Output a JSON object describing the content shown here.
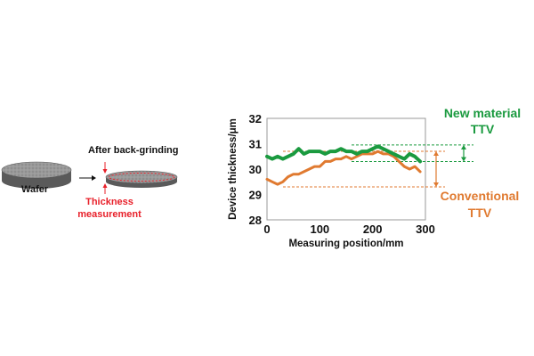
{
  "diagram": {
    "wafer_label": "Wafer",
    "after_label": "After back-grinding",
    "thickness_label_line1": "Thickness",
    "thickness_label_line2": "measurement"
  },
  "annotations": {
    "new_line1": "New material",
    "new_line2": "TTV",
    "conv_line1": "Conventional",
    "conv_line2": "TTV"
  },
  "colors": {
    "new_material": "#1a9a3f",
    "conventional": "#e07a30",
    "red": "#e8202a"
  },
  "chart_data": {
    "type": "line",
    "title": "",
    "xlabel": "Measuring position/mm",
    "ylabel": "Device thickness/μm",
    "xlim": [
      0,
      300
    ],
    "ylim": [
      28,
      32
    ],
    "xticks": [
      "0",
      "100",
      "200",
      "300"
    ],
    "yticks": [
      "28",
      "29",
      "30",
      "31",
      "32"
    ],
    "grid": false,
    "series": [
      {
        "name": "New material",
        "color": "#1a9a3f",
        "x": [
          0,
          10,
          20,
          30,
          40,
          50,
          60,
          70,
          80,
          90,
          100,
          110,
          120,
          130,
          140,
          150,
          160,
          170,
          180,
          190,
          200,
          210,
          220,
          230,
          240,
          250,
          260,
          270,
          280,
          290
        ],
        "y": [
          30.5,
          30.4,
          30.5,
          30.4,
          30.5,
          30.6,
          30.8,
          30.6,
          30.7,
          30.7,
          30.7,
          30.6,
          30.7,
          30.7,
          30.8,
          30.7,
          30.7,
          30.6,
          30.7,
          30.7,
          30.8,
          30.9,
          30.8,
          30.7,
          30.6,
          30.5,
          30.4,
          30.6,
          30.5,
          30.3
        ]
      },
      {
        "name": "Conventional",
        "color": "#e07a30",
        "x": [
          0,
          10,
          20,
          30,
          40,
          50,
          60,
          70,
          80,
          90,
          100,
          110,
          120,
          130,
          140,
          150,
          160,
          170,
          180,
          190,
          200,
          210,
          220,
          230,
          240,
          250,
          260,
          270,
          280,
          290
        ],
        "y": [
          29.6,
          29.5,
          29.4,
          29.5,
          29.7,
          29.8,
          29.8,
          29.9,
          30.0,
          30.1,
          30.1,
          30.3,
          30.3,
          30.4,
          30.4,
          30.5,
          30.4,
          30.5,
          30.6,
          30.6,
          30.6,
          30.7,
          30.6,
          30.6,
          30.5,
          30.3,
          30.1,
          30.0,
          30.1,
          29.9
        ]
      }
    ],
    "ttv_lines": {
      "new_material": [
        30.3,
        30.95
      ],
      "conventional": [
        29.3,
        30.7
      ]
    }
  }
}
